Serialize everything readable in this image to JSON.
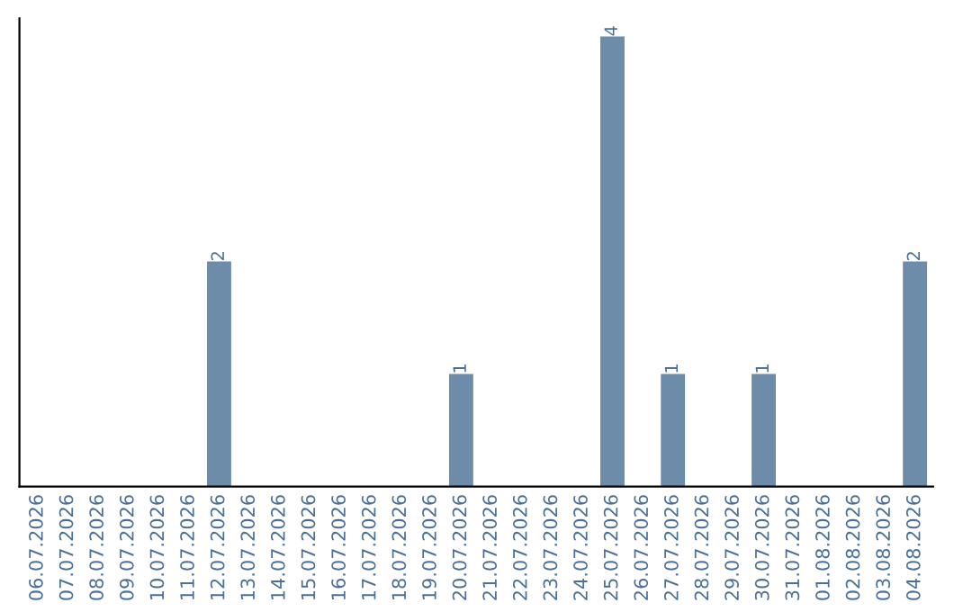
{
  "chart_data": {
    "type": "bar",
    "categories": [
      "06.07.2026",
      "07.07.2026",
      "08.07.2026",
      "09.07.2026",
      "10.07.2026",
      "11.07.2026",
      "12.07.2026",
      "13.07.2026",
      "14.07.2026",
      "15.07.2026",
      "16.07.2026",
      "17.07.2026",
      "18.07.2026",
      "19.07.2026",
      "20.07.2026",
      "21.07.2026",
      "22.07.2026",
      "23.07.2026",
      "24.07.2026",
      "25.07.2026",
      "26.07.2026",
      "27.07.2026",
      "28.07.2026",
      "29.07.2026",
      "30.07.2026",
      "31.07.2026",
      "01.08.2026",
      "02.08.2026",
      "03.08.2026",
      "04.08.2026"
    ],
    "values": [
      0,
      0,
      0,
      0,
      0,
      0,
      2,
      0,
      0,
      0,
      0,
      0,
      0,
      0,
      1,
      0,
      0,
      0,
      0,
      4,
      0,
      1,
      0,
      0,
      1,
      0,
      0,
      0,
      0,
      2
    ],
    "value_labels": [
      null,
      null,
      null,
      null,
      null,
      null,
      "2",
      null,
      null,
      null,
      null,
      null,
      null,
      null,
      "1",
      null,
      null,
      null,
      null,
      "4",
      null,
      "1",
      null,
      null,
      "1",
      null,
      null,
      null,
      null,
      "2"
    ],
    "color": "#6d8ca9",
    "tick_labels": "x",
    "grid": false,
    "legend": false
  }
}
